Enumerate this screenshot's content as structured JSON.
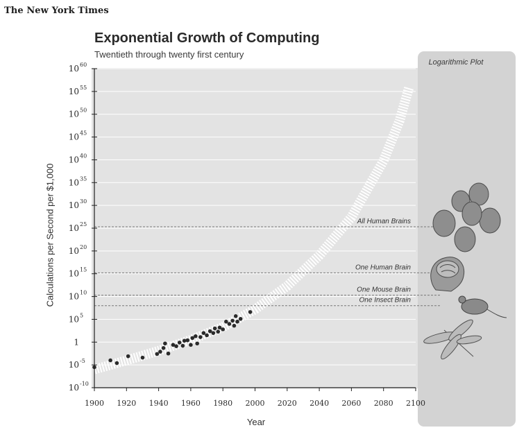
{
  "masthead": "The New York Times",
  "chart_data": {
    "type": "scatter",
    "title": "Exponential Growth of Computing",
    "subtitle": "Twentieth through twenty first century",
    "xlabel": "Year",
    "ylabel": "Calculations per Second per $1,000",
    "xlim": [
      1900,
      2100
    ],
    "ylim": [
      -10,
      60
    ],
    "y_scale": "log10",
    "x_ticks": [
      {
        "value": 1900,
        "label": "1900"
      },
      {
        "value": 1920,
        "label": "1920"
      },
      {
        "value": 1940,
        "label": "1940"
      },
      {
        "value": 1960,
        "label": "1960"
      },
      {
        "value": 1980,
        "label": "1980"
      },
      {
        "value": 2000,
        "label": "2000"
      },
      {
        "value": 2020,
        "label": "2020"
      },
      {
        "value": 2040,
        "label": "2040"
      },
      {
        "value": 2060,
        "label": "2060"
      },
      {
        "value": 2080,
        "label": "2080"
      },
      {
        "value": 2100,
        "label": "2100"
      }
    ],
    "y_ticks": [
      {
        "value": 60,
        "base": "10",
        "exp": "60"
      },
      {
        "value": 55,
        "base": "10",
        "exp": "55"
      },
      {
        "value": 50,
        "base": "10",
        "exp": "50"
      },
      {
        "value": 45,
        "base": "10",
        "exp": "45"
      },
      {
        "value": 40,
        "base": "10",
        "exp": "40"
      },
      {
        "value": 35,
        "base": "10",
        "exp": "35"
      },
      {
        "value": 30,
        "base": "10",
        "exp": "30"
      },
      {
        "value": 25,
        "base": "10",
        "exp": "25"
      },
      {
        "value": 20,
        "base": "10",
        "exp": "20"
      },
      {
        "value": 15,
        "base": "10",
        "exp": "15"
      },
      {
        "value": 10,
        "base": "10",
        "exp": "10"
      },
      {
        "value": 5,
        "base": "10",
        "exp": "5"
      },
      {
        "value": 0,
        "base": "1",
        "exp": ""
      },
      {
        "value": -5,
        "base": "10",
        "exp": "-5"
      },
      {
        "value": -10,
        "base": "10",
        "exp": "-10"
      }
    ],
    "points": [
      {
        "x": 1900,
        "y": -5.5
      },
      {
        "x": 1910,
        "y": -4.0
      },
      {
        "x": 1914,
        "y": -4.6
      },
      {
        "x": 1921,
        "y": -3.1
      },
      {
        "x": 1930,
        "y": -3.4
      },
      {
        "x": 1939,
        "y": -2.6
      },
      {
        "x": 1941,
        "y": -2.1
      },
      {
        "x": 1943,
        "y": -1.3
      },
      {
        "x": 1944,
        "y": -0.3
      },
      {
        "x": 1946,
        "y": -2.5
      },
      {
        "x": 1949,
        "y": -0.6
      },
      {
        "x": 1951,
        "y": -0.9
      },
      {
        "x": 1953,
        "y": -0.1
      },
      {
        "x": 1955,
        "y": -0.8
      },
      {
        "x": 1956,
        "y": 0.3
      },
      {
        "x": 1958,
        "y": 0.4
      },
      {
        "x": 1960,
        "y": -0.6
      },
      {
        "x": 1961,
        "y": 0.9
      },
      {
        "x": 1963,
        "y": 1.3
      },
      {
        "x": 1964,
        "y": -0.3
      },
      {
        "x": 1966,
        "y": 1.1
      },
      {
        "x": 1968,
        "y": 2.0
      },
      {
        "x": 1970,
        "y": 1.5
      },
      {
        "x": 1972,
        "y": 2.4
      },
      {
        "x": 1974,
        "y": 2.0
      },
      {
        "x": 1975,
        "y": 3.0
      },
      {
        "x": 1977,
        "y": 2.3
      },
      {
        "x": 1978,
        "y": 3.2
      },
      {
        "x": 1980,
        "y": 2.8
      },
      {
        "x": 1982,
        "y": 4.5
      },
      {
        "x": 1984,
        "y": 4.0
      },
      {
        "x": 1986,
        "y": 4.7
      },
      {
        "x": 1987,
        "y": 3.6
      },
      {
        "x": 1988,
        "y": 5.7
      },
      {
        "x": 1989,
        "y": 4.5
      },
      {
        "x": 1991,
        "y": 5.1
      },
      {
        "x": 1997,
        "y": 6.6
      }
    ],
    "trend": [
      {
        "x": 1900,
        "y": -6.0
      },
      {
        "x": 1920,
        "y": -4.0
      },
      {
        "x": 1940,
        "y": -1.9
      },
      {
        "x": 1960,
        "y": 0.5
      },
      {
        "x": 1980,
        "y": 3.3
      },
      {
        "x": 2000,
        "y": 7.2
      },
      {
        "x": 2020,
        "y": 12.3
      },
      {
        "x": 2040,
        "y": 19.0
      },
      {
        "x": 2060,
        "y": 27.4
      },
      {
        "x": 2080,
        "y": 39.8
      },
      {
        "x": 2090,
        "y": 48.6
      },
      {
        "x": 2096,
        "y": 56.0
      }
    ],
    "thresholds": [
      {
        "label": "All Human Brains",
        "value": 25.3
      },
      {
        "label": "One Human Brain",
        "value": 15.2
      },
      {
        "label": "One Mouse Brain",
        "value": 10.3
      },
      {
        "label": "One Insect Brain",
        "value": 8.0
      }
    ],
    "panel_title": "Logarithmic Plot",
    "panel_illustrations": [
      "human-faces-icon",
      "human-brain-icon",
      "mouse-icon",
      "dragonfly-icon"
    ],
    "colors": {
      "plot_background": "#e3e3e3",
      "panel_background": "#d3d3d3",
      "gridline": "#ffffff",
      "threshold_line": "#777777",
      "point": "#2b2b2b",
      "trend": "#ffffff"
    }
  }
}
